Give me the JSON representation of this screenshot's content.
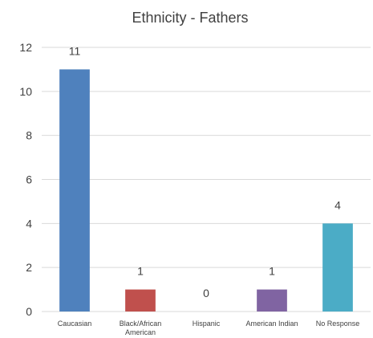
{
  "chart_data": {
    "type": "bar",
    "title": "Ethnicity - Fathers",
    "xlabel": "",
    "ylabel": "",
    "categories": [
      [
        "Caucasian"
      ],
      [
        "Black/African",
        "American"
      ],
      [
        "Hispanic"
      ],
      [
        "American Indian"
      ],
      [
        "No Response"
      ]
    ],
    "values": [
      11,
      1,
      0,
      1,
      4
    ],
    "data_labels": [
      "11",
      "1",
      "0",
      "1",
      "4"
    ],
    "colors": [
      "#4F81BD",
      "#C0504D",
      "#9BBB59",
      "#8064A2",
      "#4BACC6"
    ],
    "ylim": [
      0,
      12
    ],
    "yticks": [
      0,
      2,
      4,
      6,
      8,
      10,
      12
    ],
    "grid": true,
    "legend": "none"
  }
}
